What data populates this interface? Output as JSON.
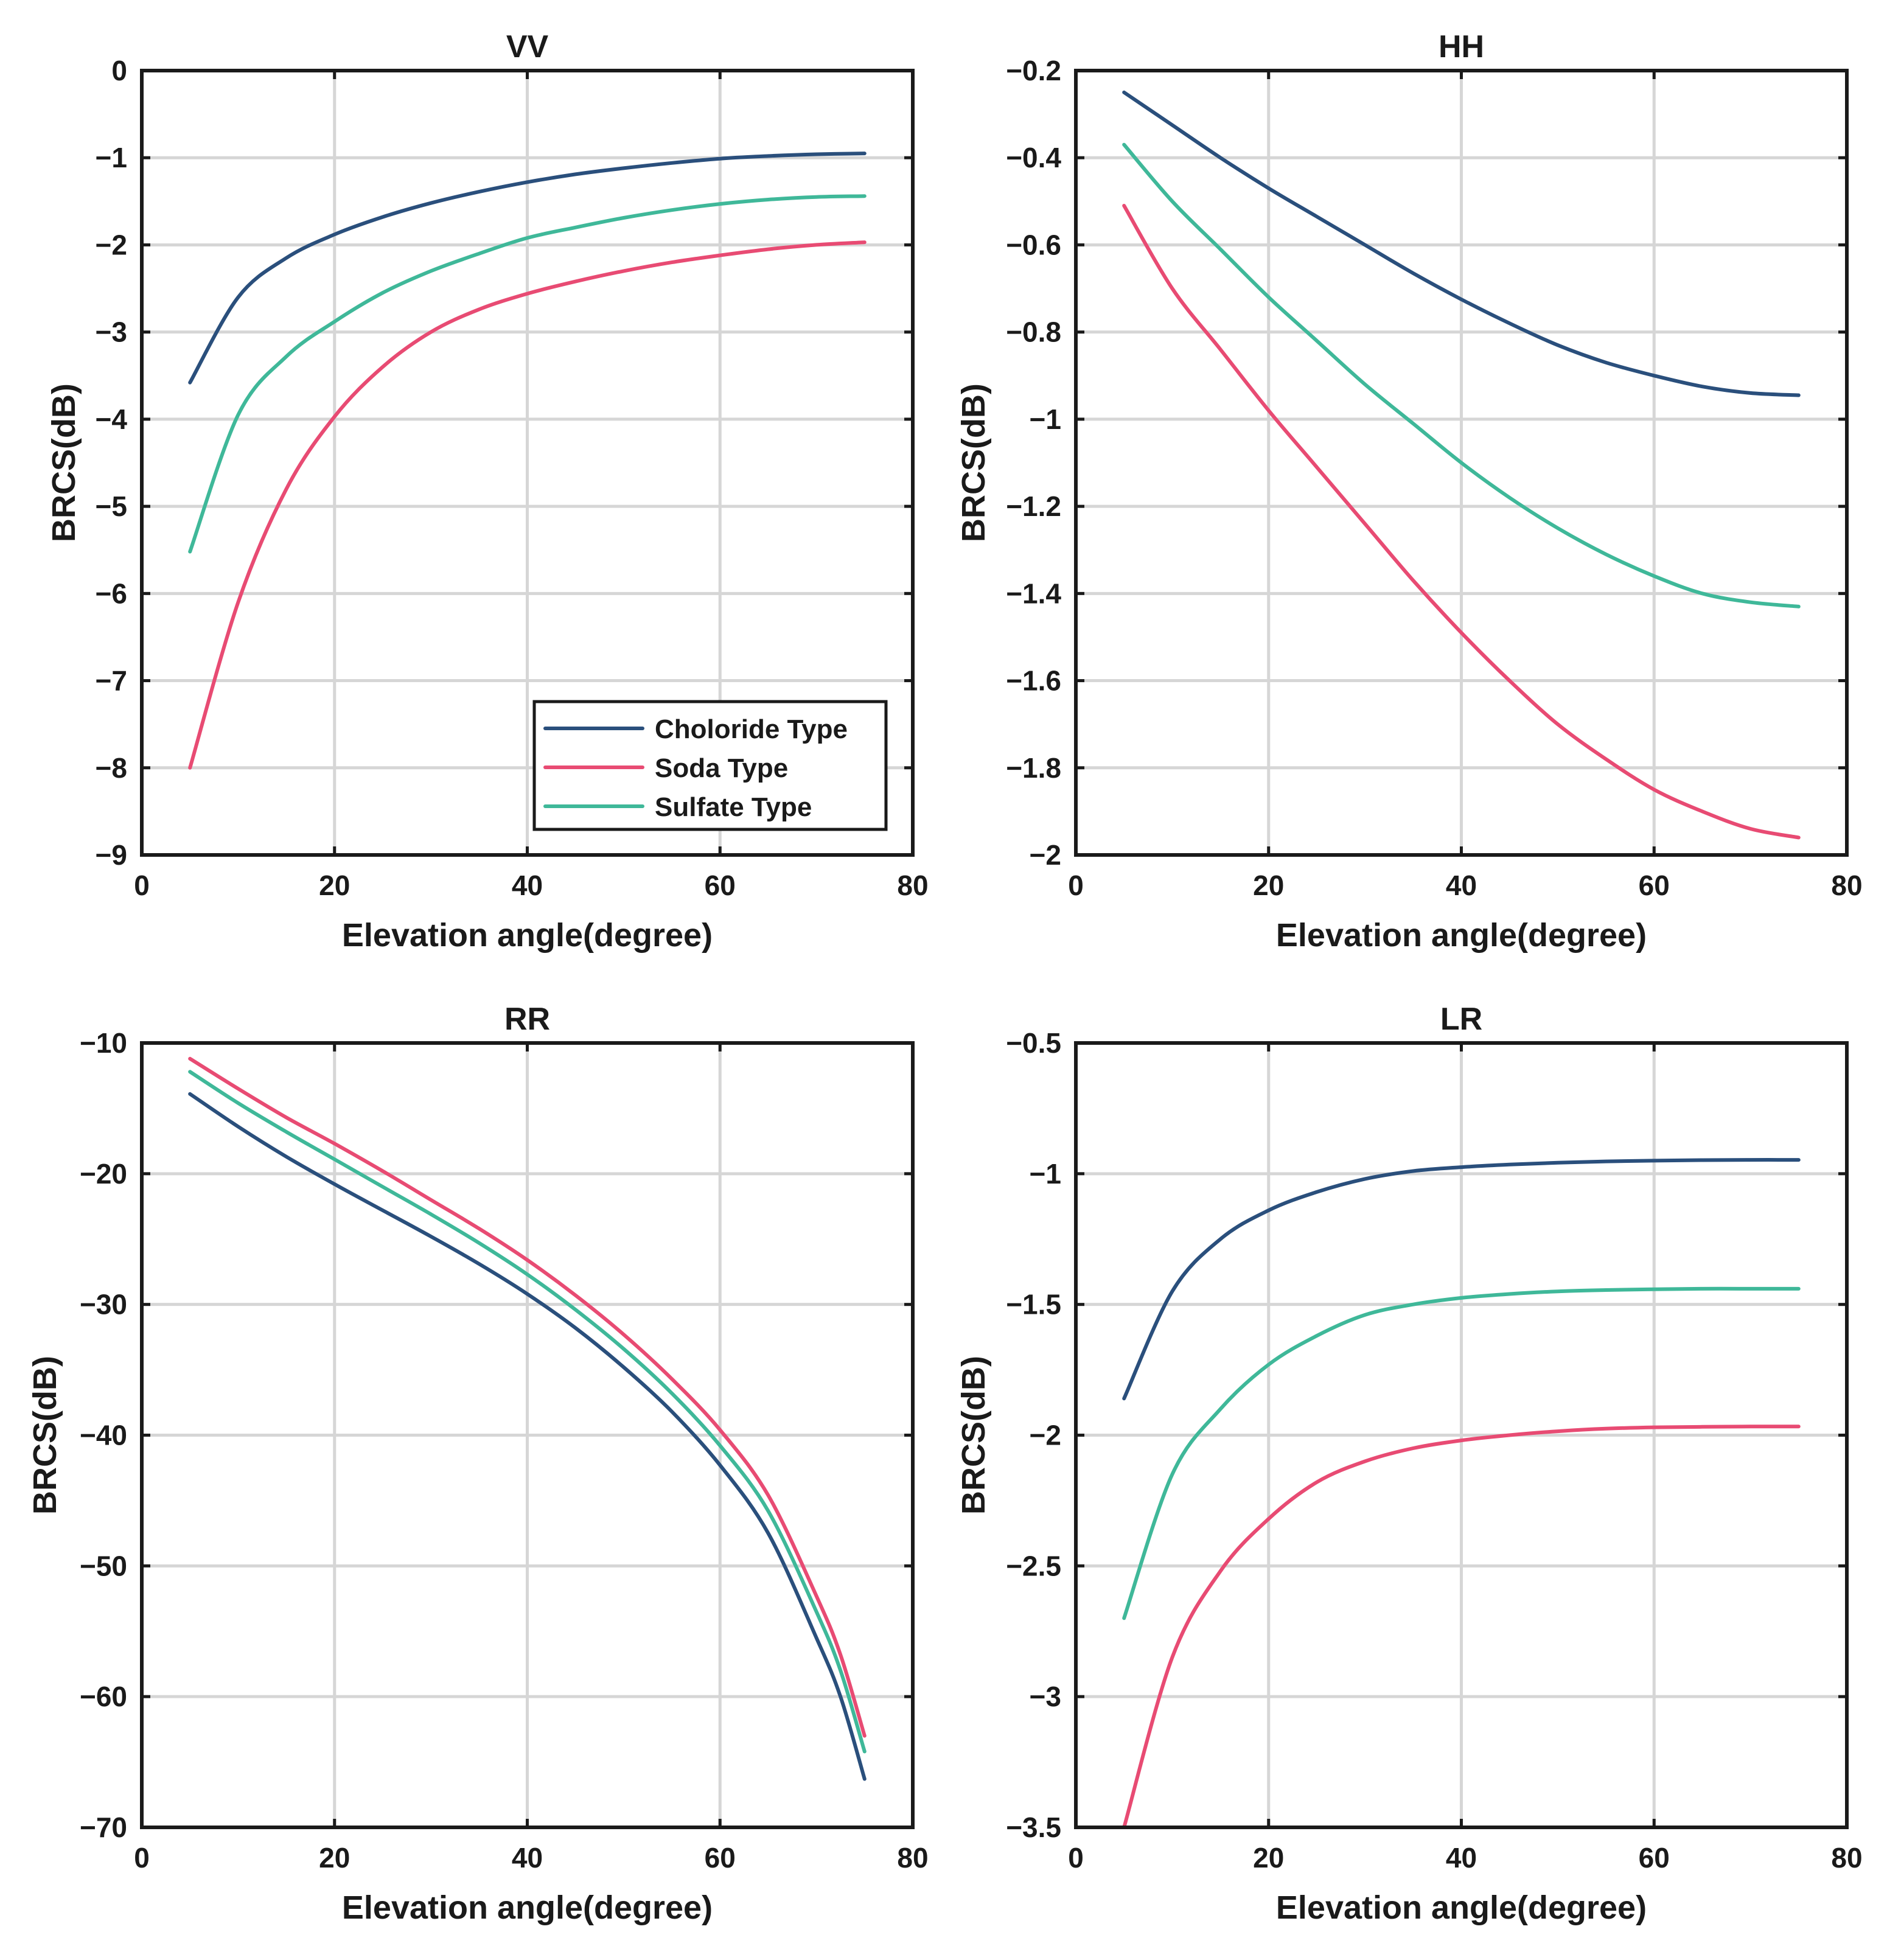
{
  "colors": {
    "choloride": "#2a4f7c",
    "soda": "#e84b73",
    "sulfate": "#3fb899"
  },
  "legend": {
    "entries": [
      {
        "label": "Choloride Type",
        "color_key": "choloride"
      },
      {
        "label": "Soda Type",
        "color_key": "soda"
      },
      {
        "label": "Sulfate Type",
        "color_key": "sulfate"
      }
    ],
    "placement": "bottom-right",
    "panel": "VV"
  },
  "chart_data": [
    {
      "type": "line",
      "title": "VV",
      "xlabel": "Elevation angle(degree)",
      "ylabel": "BRCS(dB)",
      "xlim": [
        0,
        80
      ],
      "ylim": [
        -9,
        0
      ],
      "xticks": [
        0,
        20,
        40,
        60,
        80
      ],
      "xtick_labels": [
        "0",
        "20",
        "40",
        "60",
        "80"
      ],
      "yticks": [
        0,
        -1,
        -2,
        -3,
        -4,
        -5,
        -6,
        -7,
        -8,
        -9
      ],
      "ytick_labels": [
        "0",
        "−1",
        "−2",
        "−3",
        "−4",
        "−5",
        "−6",
        "−7",
        "−8",
        "−9"
      ],
      "grid": true,
      "x": [
        5,
        10,
        15,
        20,
        25,
        30,
        35,
        40,
        45,
        50,
        55,
        60,
        65,
        70,
        75
      ],
      "series": [
        {
          "name": "Choloride Type",
          "color_key": "choloride",
          "values": [
            -3.58,
            -2.6,
            -2.15,
            -1.88,
            -1.68,
            -1.52,
            -1.39,
            -1.28,
            -1.19,
            -1.12,
            -1.06,
            -1.01,
            -0.98,
            -0.96,
            -0.95
          ]
        },
        {
          "name": "Soda Type",
          "color_key": "soda",
          "values": [
            -8.0,
            -6.1,
            -4.8,
            -3.97,
            -3.4,
            -3.0,
            -2.74,
            -2.56,
            -2.42,
            -2.3,
            -2.2,
            -2.12,
            -2.05,
            -2.0,
            -1.97
          ]
        },
        {
          "name": "Sulfate Type",
          "color_key": "sulfate",
          "values": [
            -5.52,
            -3.95,
            -3.28,
            -2.88,
            -2.55,
            -2.3,
            -2.1,
            -1.92,
            -1.8,
            -1.69,
            -1.6,
            -1.53,
            -1.48,
            -1.45,
            -1.44
          ]
        }
      ]
    },
    {
      "type": "line",
      "title": "HH",
      "xlabel": "Elevation angle(degree)",
      "ylabel": "BRCS(dB)",
      "xlim": [
        0,
        80
      ],
      "ylim": [
        -2,
        -0.2
      ],
      "xticks": [
        0,
        20,
        40,
        60,
        80
      ],
      "xtick_labels": [
        "0",
        "20",
        "40",
        "60",
        "80"
      ],
      "yticks": [
        -0.2,
        -0.4,
        -0.6,
        -0.8,
        -1,
        -1.2,
        -1.4,
        -1.6,
        -1.8,
        -2
      ],
      "ytick_labels": [
        "−0.2",
        "−0.4",
        "−0.6",
        "−0.8",
        "−1",
        "−1.2",
        "−1.4",
        "−1.6",
        "−1.8",
        "−2"
      ],
      "grid": true,
      "x": [
        5,
        10,
        15,
        20,
        25,
        30,
        35,
        40,
        45,
        50,
        55,
        60,
        65,
        70,
        75
      ],
      "series": [
        {
          "name": "Choloride Type",
          "color_key": "choloride",
          "values": [
            -0.25,
            -0.325,
            -0.4,
            -0.47,
            -0.535,
            -0.6,
            -0.665,
            -0.725,
            -0.78,
            -0.83,
            -0.87,
            -0.9,
            -0.925,
            -0.94,
            -0.945
          ]
        },
        {
          "name": "Soda Type",
          "color_key": "soda",
          "values": [
            -0.51,
            -0.7,
            -0.84,
            -0.98,
            -1.11,
            -1.24,
            -1.37,
            -1.49,
            -1.6,
            -1.7,
            -1.78,
            -1.85,
            -1.9,
            -1.94,
            -1.96
          ]
        },
        {
          "name": "Sulfate Type",
          "color_key": "sulfate",
          "values": [
            -0.37,
            -0.5,
            -0.61,
            -0.72,
            -0.82,
            -0.92,
            -1.01,
            -1.1,
            -1.18,
            -1.25,
            -1.31,
            -1.36,
            -1.4,
            -1.42,
            -1.43
          ]
        }
      ]
    },
    {
      "type": "line",
      "title": "RR",
      "xlabel": "Elevation angle(degree)",
      "ylabel": "BRCS(dB)",
      "xlim": [
        0,
        80
      ],
      "ylim": [
        -70,
        -10
      ],
      "xticks": [
        0,
        20,
        40,
        60,
        80
      ],
      "xtick_labels": [
        "0",
        "20",
        "40",
        "60",
        "80"
      ],
      "yticks": [
        -10,
        -20,
        -30,
        -40,
        -50,
        -60,
        -70
      ],
      "ytick_labels": [
        "−10",
        "−20",
        "−30",
        "−40",
        "−50",
        "−60",
        "−70"
      ],
      "grid": true,
      "x": [
        5,
        10,
        15,
        20,
        25,
        30,
        35,
        40,
        45,
        50,
        55,
        60,
        65,
        70,
        72.5,
        75
      ],
      "series": [
        {
          "name": "Choloride Type",
          "color_key": "choloride",
          "values": [
            -13.9,
            -16.4,
            -18.7,
            -20.8,
            -22.8,
            -24.8,
            -26.9,
            -29.2,
            -31.8,
            -34.8,
            -38.2,
            -42.3,
            -47.5,
            -55.5,
            -60.0,
            -66.3
          ]
        },
        {
          "name": "Soda Type",
          "color_key": "soda",
          "values": [
            -11.2,
            -13.5,
            -15.7,
            -17.7,
            -19.8,
            -22.0,
            -24.2,
            -26.6,
            -29.3,
            -32.3,
            -35.7,
            -39.6,
            -44.6,
            -52.3,
            -56.8,
            -63.0
          ]
        },
        {
          "name": "Sulfate Type",
          "color_key": "sulfate",
          "values": [
            -12.2,
            -14.6,
            -16.8,
            -18.9,
            -21.0,
            -23.1,
            -25.3,
            -27.7,
            -30.4,
            -33.4,
            -36.8,
            -40.8,
            -45.8,
            -53.5,
            -58.0,
            -64.2
          ]
        }
      ]
    },
    {
      "type": "line",
      "title": "LR",
      "xlabel": "Elevation angle(degree)",
      "ylabel": "BRCS(dB)",
      "xlim": [
        0,
        80
      ],
      "ylim": [
        -3.5,
        -0.5
      ],
      "xticks": [
        0,
        20,
        40,
        60,
        80
      ],
      "xtick_labels": [
        "0",
        "20",
        "40",
        "60",
        "80"
      ],
      "yticks": [
        -0.5,
        -1,
        -1.5,
        -2,
        -2.5,
        -3,
        -3.5
      ],
      "ytick_labels": [
        "−0.5",
        "−1",
        "−1.5",
        "−2",
        "−2.5",
        "−3",
        "−3.5"
      ],
      "grid": true,
      "x": [
        5,
        10,
        15,
        20,
        25,
        30,
        35,
        40,
        45,
        50,
        55,
        60,
        65,
        70,
        75
      ],
      "series": [
        {
          "name": "Choloride Type",
          "color_key": "choloride",
          "values": [
            -1.86,
            -1.45,
            -1.25,
            -1.14,
            -1.07,
            -1.02,
            -0.99,
            -0.975,
            -0.965,
            -0.958,
            -0.953,
            -0.95,
            -0.948,
            -0.947,
            -0.947
          ]
        },
        {
          "name": "Soda Type",
          "color_key": "soda",
          "values": [
            -3.5,
            -2.85,
            -2.52,
            -2.32,
            -2.18,
            -2.1,
            -2.05,
            -2.02,
            -2.0,
            -1.985,
            -1.975,
            -1.97,
            -1.968,
            -1.967,
            -1.967
          ]
        },
        {
          "name": "Sulfate Type",
          "color_key": "sulfate",
          "values": [
            -2.7,
            -2.15,
            -1.9,
            -1.73,
            -1.62,
            -1.54,
            -1.5,
            -1.475,
            -1.46,
            -1.45,
            -1.445,
            -1.442,
            -1.44,
            -1.44,
            -1.44
          ]
        }
      ]
    }
  ]
}
